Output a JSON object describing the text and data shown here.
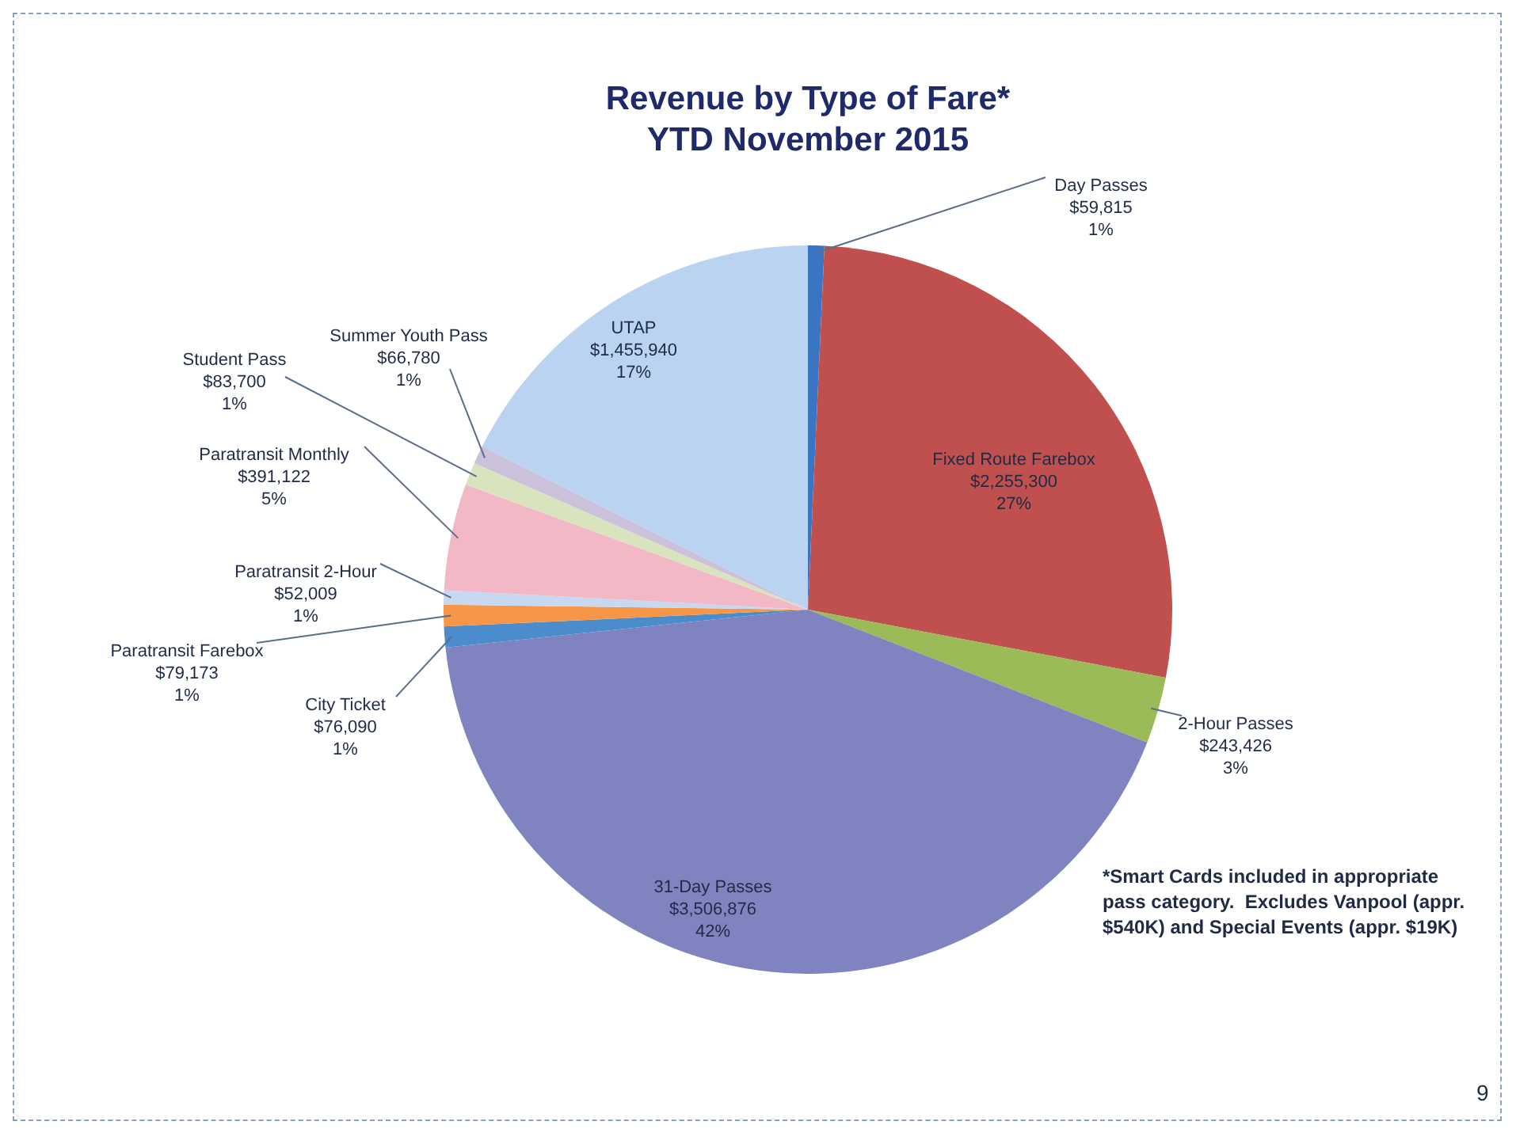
{
  "chart_data": {
    "type": "pie",
    "title": "Revenue by Type of Fare*",
    "subtitle": "YTD November 2015",
    "categories": [
      "Day Passes",
      "Fixed Route Farebox",
      "2-Hour Passes",
      "31-Day Passes",
      "City Ticket",
      "Paratransit Farebox",
      "Paratransit 2-Hour",
      "Paratransit Monthly",
      "Student Pass",
      "Summer Youth Pass",
      "UTAP"
    ],
    "values": [
      59815,
      2255300,
      243426,
      3506876,
      76090,
      79173,
      52009,
      391122,
      83700,
      66780,
      1455940
    ],
    "value_labels": [
      "$59,815\n1%",
      "$2,255,300\n27%",
      "$243,426\n3%",
      "$3,506,876\n42%",
      "$76,090\n1%",
      "$79,173\n1%",
      "$52,009\n1%",
      "$391,122\n5%",
      "$83,700\n1%",
      "$66,780\n1%",
      "$1,455,940\n17%"
    ],
    "colors": [
      "#3a75c4",
      "#c0504d",
      "#9bbb59",
      "#7f84c0",
      "#4a8ccc",
      "#f79646",
      "#c6d9f1",
      "#f2b8c6",
      "#d7e4bd",
      "#ccc1da",
      "#b9d3f0"
    ],
    "legend": false,
    "annotations": [
      "*Smart Cards included in appropriate pass category.  Excludes Vanpool (appr. $540K) and Special Events (appr. $19K)",
      "9"
    ]
  }
}
